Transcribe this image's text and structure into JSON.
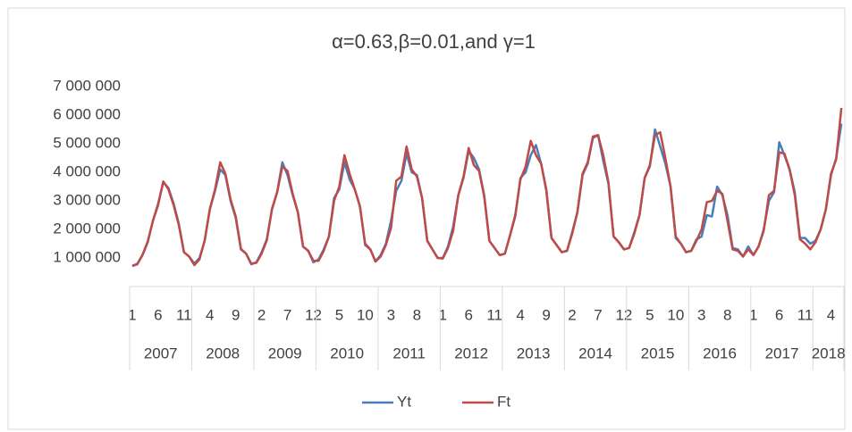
{
  "chart_data": {
    "type": "line",
    "title": "α=0.63,β=0.01,and γ=1",
    "categories": [
      "1",
      null,
      null,
      null,
      null,
      "6",
      null,
      null,
      null,
      null,
      "11",
      null,
      null,
      null,
      null,
      "4",
      null,
      null,
      null,
      null,
      "9",
      null,
      null,
      null,
      null,
      "2",
      null,
      null,
      null,
      null,
      "7",
      null,
      null,
      null,
      null,
      "12",
      null,
      null,
      null,
      null,
      "5",
      null,
      null,
      null,
      null,
      "10",
      null,
      null,
      null,
      null,
      "3",
      null,
      null,
      null,
      null,
      "8",
      null,
      null,
      null,
      null,
      "1",
      null,
      null,
      null,
      null,
      "6",
      null,
      null,
      null,
      null,
      "11",
      null,
      null,
      null,
      null,
      "4",
      null,
      null,
      null,
      null,
      "9",
      null,
      null,
      null,
      null,
      "2",
      null,
      null,
      null,
      null,
      "7",
      null,
      null,
      null,
      null,
      "12",
      null,
      null,
      null,
      null,
      "5",
      null,
      null,
      null,
      null,
      "10",
      null,
      null,
      null,
      null,
      "3",
      null,
      null,
      null,
      null,
      "8",
      null,
      null,
      null,
      null,
      "1",
      null,
      null,
      null,
      null,
      "6",
      null,
      null,
      null,
      null,
      "11",
      null,
      null,
      null,
      null,
      "4",
      null,
      null
    ],
    "years": [
      "2007",
      "2008",
      "2009",
      "2010",
      "2011",
      "2012",
      "2013",
      "2014",
      "2015",
      "2016",
      "2017",
      "2018"
    ],
    "series": [
      {
        "name": "Yt",
        "color": "#4a7ebb",
        "values": [
          720000,
          800000,
          1100000,
          1550000,
          2300000,
          2900000,
          3650000,
          3450000,
          2900000,
          2200000,
          1200000,
          1050000,
          800000,
          1000000,
          1600000,
          2700000,
          3350000,
          4100000,
          3900000,
          3000000,
          2400000,
          1300000,
          1150000,
          780000,
          850000,
          1200000,
          1650000,
          2700000,
          3300000,
          4350000,
          3900000,
          3200000,
          2600000,
          1400000,
          1250000,
          850000,
          950000,
          1300000,
          1750000,
          3100000,
          3400000,
          4350000,
          3750000,
          3400000,
          2800000,
          1450000,
          1300000,
          880000,
          1100000,
          1500000,
          2300000,
          3350000,
          3700000,
          4650000,
          4000000,
          3900000,
          3100000,
          1600000,
          1300000,
          1000000,
          1000000,
          1400000,
          2100000,
          3200000,
          3800000,
          4750000,
          4500000,
          4100000,
          3200000,
          1600000,
          1350000,
          1100000,
          1150000,
          1800000,
          2450000,
          3800000,
          4000000,
          4600000,
          4950000,
          4300000,
          3400000,
          1700000,
          1450000,
          1200000,
          1250000,
          1900000,
          2600000,
          3900000,
          4300000,
          5200000,
          5300000,
          4400000,
          3600000,
          1750000,
          1550000,
          1300000,
          1350000,
          1900000,
          2500000,
          3800000,
          4200000,
          5500000,
          4900000,
          4300000,
          3500000,
          1700000,
          1500000,
          1200000,
          1250000,
          1650000,
          1750000,
          2500000,
          2450000,
          3500000,
          3200000,
          2500000,
          1350000,
          1300000,
          1050000,
          1400000,
          1100000,
          1400000,
          2000000,
          3000000,
          3300000,
          5050000,
          4600000,
          4100000,
          3300000,
          1700000,
          1700000,
          1500000,
          1600000,
          2000000,
          2700000,
          3900000,
          4500000,
          5700000
        ]
      },
      {
        "name": "Ft",
        "color": "#be4b48",
        "values": [
          720000,
          780000,
          1120000,
          1580000,
          2300000,
          2850000,
          3680000,
          3400000,
          2850000,
          2150000,
          1200000,
          1050000,
          750000,
          950000,
          1620000,
          2720000,
          3400000,
          4350000,
          3950000,
          3050000,
          2450000,
          1320000,
          1150000,
          800000,
          830000,
          1150000,
          1620000,
          2720000,
          3300000,
          4200000,
          4050000,
          3250000,
          2600000,
          1400000,
          1250000,
          900000,
          900000,
          1250000,
          1750000,
          3000000,
          3500000,
          4600000,
          3950000,
          3400000,
          2800000,
          1500000,
          1300000,
          870000,
          1050000,
          1450000,
          2050000,
          3700000,
          3850000,
          4900000,
          4100000,
          3850000,
          3100000,
          1600000,
          1300000,
          1000000,
          980000,
          1350000,
          1950000,
          3200000,
          3850000,
          4850000,
          4250000,
          4050000,
          3150000,
          1600000,
          1350000,
          1100000,
          1150000,
          1800000,
          2500000,
          3750000,
          4200000,
          5100000,
          4600000,
          4300000,
          3350000,
          1700000,
          1450000,
          1200000,
          1250000,
          1850000,
          2600000,
          3950000,
          4350000,
          5250000,
          5300000,
          4600000,
          3650000,
          1750000,
          1550000,
          1300000,
          1350000,
          1850000,
          2500000,
          3800000,
          4250000,
          5300000,
          5400000,
          4500000,
          3500000,
          1750000,
          1500000,
          1200000,
          1250000,
          1600000,
          2000000,
          2950000,
          3000000,
          3350000,
          3250000,
          2300000,
          1300000,
          1250000,
          1050000,
          1300000,
          1100000,
          1400000,
          1950000,
          3200000,
          3350000,
          4700000,
          4650000,
          4100000,
          3200000,
          1650000,
          1500000,
          1300000,
          1550000,
          2000000,
          2700000,
          3950000,
          4450000,
          6250000
        ]
      }
    ],
    "ylim": [
      0,
      7000000
    ],
    "yticks": [
      {
        "value": 1000000,
        "label": "1 000 000"
      },
      {
        "value": 2000000,
        "label": "2 000 000"
      },
      {
        "value": 3000000,
        "label": "3 000 000"
      },
      {
        "value": 4000000,
        "label": "4 000 000"
      },
      {
        "value": 5000000,
        "label": "5 000 000"
      },
      {
        "value": 6000000,
        "label": "6 000 000"
      },
      {
        "value": 7000000,
        "label": "7 000 000"
      }
    ],
    "grid": false,
    "legend": "bottom"
  }
}
